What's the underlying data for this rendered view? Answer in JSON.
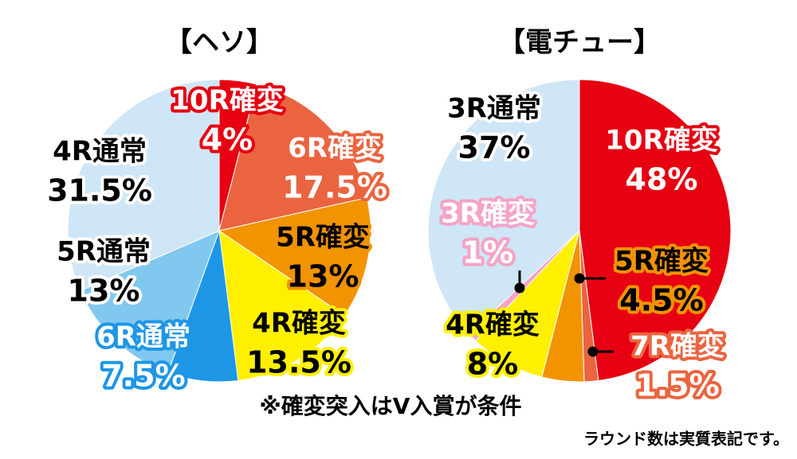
{
  "chart_data": [
    {
      "type": "pie",
      "title": "【ヘソ】",
      "categories": [
        "10R確変",
        "6R確変",
        "5R確変",
        "4R確変",
        "6R通常",
        "5R通常",
        "4R通常"
      ],
      "values": [
        4,
        17.5,
        13,
        13.5,
        7.5,
        13,
        31.5
      ],
      "value_labels": [
        "4%",
        "17.5%",
        "13%",
        "13.5%",
        "7.5%",
        "13%",
        "31.5%"
      ],
      "colors": [
        "#e60012",
        "#eb6440",
        "#f29300",
        "#fff000",
        "#1e96e6",
        "#80c8f0",
        "#cfe6f6"
      ],
      "annotation": "※確変突入はV入賞が条件"
    },
    {
      "type": "pie",
      "title": "【電チュー】",
      "categories": [
        "10R確変",
        "7R確変",
        "5R確変",
        "4R確変",
        "3R確変",
        "3R通常"
      ],
      "values": [
        48,
        1.5,
        4.5,
        8,
        1,
        37
      ],
      "value_labels": [
        "48%",
        "1.5%",
        "4.5%",
        "8%",
        "1%",
        "37%"
      ],
      "colors": [
        "#e60012",
        "#eb6440",
        "#f29300",
        "#fff000",
        "#f5a3c7",
        "#cfe6f6"
      ],
      "annotation": "ラウンド数は実質表記です。"
    }
  ]
}
